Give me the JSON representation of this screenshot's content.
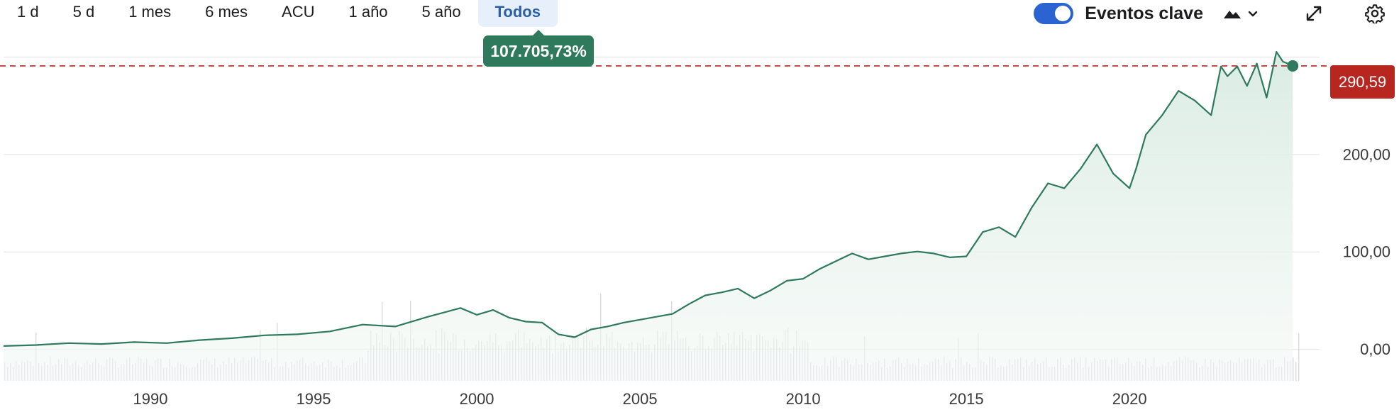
{
  "timeframe": {
    "tabs": [
      "1 d",
      "5 d",
      "1 mes",
      "6 mes",
      "ACU",
      "1 año",
      "5 año",
      "Todos"
    ],
    "active": "Todos"
  },
  "controls": {
    "events_toggle_label": "Eventos clave",
    "events_toggle_on": true,
    "chart_type_icon": "mountain-area-icon",
    "dropdown_icon": "chevron-down-icon",
    "expand_icon": "expand-icon",
    "settings_icon": "gear-icon"
  },
  "tooltip": {
    "change_text": "107.705,73%"
  },
  "current_price": {
    "label": "290,59",
    "value": 290.59
  },
  "colors": {
    "line": "#2f7a5c",
    "area_top": "#d8ebe2",
    "price_tag": "#b7261f",
    "price_line": "#b7261f",
    "grid": "#e5e5ea",
    "volume": "#d9d9de",
    "toggle": "#2b63d2",
    "active_tab_bg": "#e6effa",
    "active_tab_text": "#2a5fa8"
  },
  "chart_data": {
    "type": "area",
    "x_ticks": [
      1990,
      1995,
      2000,
      2005,
      2010,
      2015,
      2020
    ],
    "x_tick_labels": [
      "1990",
      "1995",
      "2000",
      "2005",
      "2010",
      "2015",
      "2020"
    ],
    "y_ticks": [
      0,
      100,
      200
    ],
    "y_tick_labels": [
      "0,00",
      "100,00",
      "200,00"
    ],
    "xlim": [
      1985.5,
      2025.3
    ],
    "ylim": [
      0,
      300
    ],
    "grid": true,
    "series": [
      {
        "x": [
          1985.5,
          1986.5,
          1987.5,
          1988.5,
          1989.5,
          1990.5,
          1991.5,
          1992.5,
          1993.5,
          1994.5,
          1995.5,
          1996.5,
          1997.5,
          1998.5,
          1999.5,
          2000.0,
          2000.5,
          2001.0,
          2001.5,
          2002.0,
          2002.5,
          2003.0,
          2003.5,
          2004.0,
          2004.5,
          2005.0,
          2005.5,
          2006.0,
          2006.5,
          2007.0,
          2007.5,
          2008.0,
          2008.5,
          2009.0,
          2009.5,
          2010.0,
          2010.5,
          2011.0,
          2011.5,
          2012.0,
          2012.5,
          2013.0,
          2013.5,
          2014.0,
          2014.5,
          2015.0,
          2015.5,
          2016.0,
          2016.5,
          2017.0,
          2017.5,
          2018.0,
          2018.5,
          2019.0,
          2019.5,
          2020.0,
          2020.2,
          2020.5,
          2021.0,
          2021.5,
          2022.0,
          2022.5,
          2022.8,
          2023.0,
          2023.3,
          2023.6,
          2023.9,
          2024.2,
          2024.5,
          2024.7,
          2025.0
        ],
        "y": [
          3,
          4,
          6,
          5,
          7,
          6,
          9,
          11,
          14,
          15,
          18,
          25,
          23,
          33,
          42,
          35,
          40,
          32,
          28,
          27,
          15,
          12,
          20,
          23,
          27,
          30,
          33,
          36,
          46,
          55,
          58,
          62,
          52,
          60,
          70,
          72,
          82,
          90,
          98,
          92,
          95,
          98,
          100,
          98,
          94,
          95,
          120,
          125,
          115,
          145,
          170,
          165,
          185,
          210,
          180,
          165,
          185,
          220,
          240,
          265,
          255,
          240,
          290,
          280,
          290,
          270,
          293,
          258,
          305,
          295,
          291
        ]
      }
    ],
    "current_value": 290.59,
    "tooltip_change_pct": "107.705,73%"
  }
}
